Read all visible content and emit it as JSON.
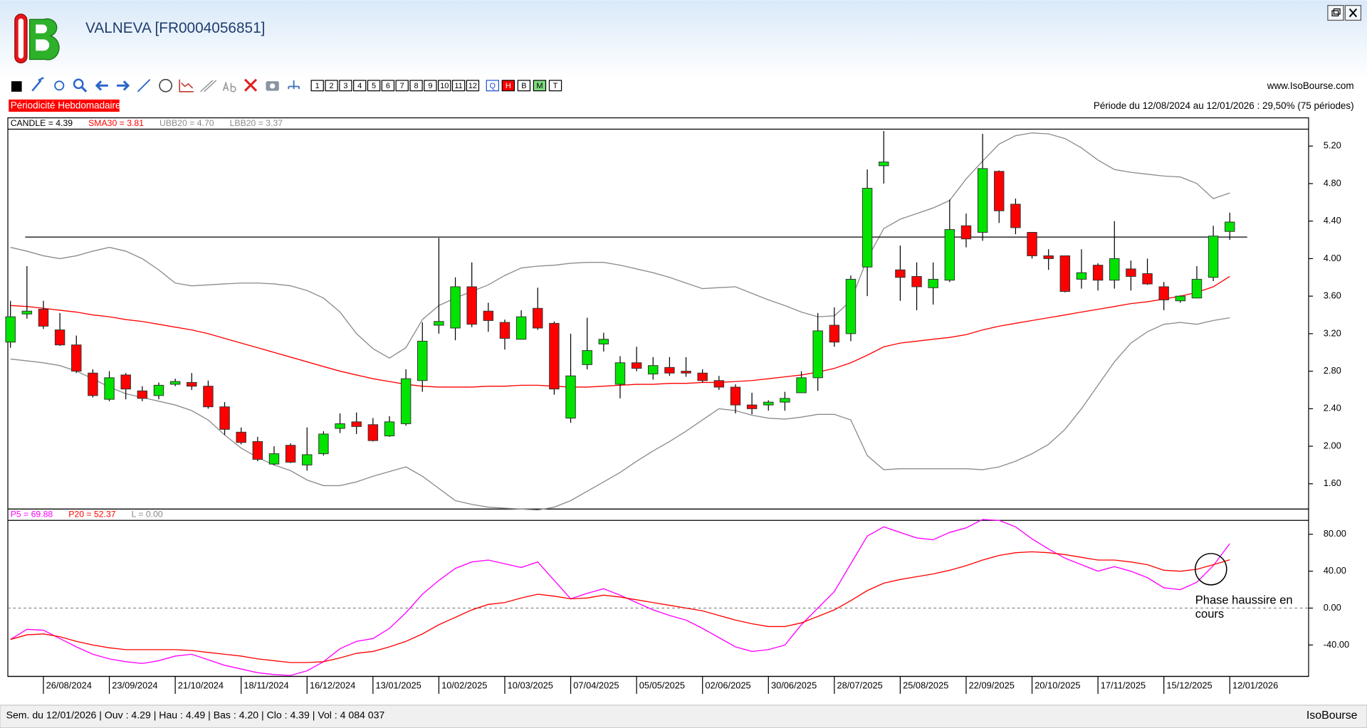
{
  "window": {
    "title": "VALNEVA [FR0004056851]",
    "site": "www.IsoBourse.com"
  },
  "toolbar": {
    "periods": [
      "1",
      "2",
      "3",
      "4",
      "5",
      "6",
      "7",
      "8",
      "9",
      "10",
      "11",
      "12"
    ],
    "modes": [
      "Q",
      "H",
      "B",
      "M",
      "T"
    ]
  },
  "periodicity": "Périodicité Hebdomadaire",
  "period_info": "Période du 12/08/2024 au 12/01/2026 : 29,50% (75 périodes)",
  "status_bar": {
    "text": "Sem. du 12/01/2026 | Ouv : 4.29 | Hau : 4.49 | Bas : 4.20 | Clo : 4.39 | Vol : 4 084 037",
    "brand": "IsoBourse"
  },
  "chart_data": [
    {
      "type": "candlestick",
      "candle_name": "CANDLE = 4.39",
      "categories": [
        null,
        null,
        "26/08/2024",
        null,
        null,
        null,
        "23/09/2024",
        null,
        null,
        null,
        "21/10/2024",
        null,
        null,
        null,
        "18/11/2024",
        null,
        null,
        null,
        "16/12/2024",
        null,
        null,
        null,
        "13/01/2025",
        null,
        null,
        null,
        "10/02/2025",
        null,
        null,
        null,
        "10/03/2025",
        null,
        null,
        null,
        "07/04/2025",
        null,
        null,
        null,
        "05/05/2025",
        null,
        null,
        null,
        "02/06/2025",
        null,
        null,
        null,
        "30/06/2025",
        null,
        null,
        null,
        "28/07/2025",
        null,
        null,
        null,
        "25/08/2025",
        null,
        null,
        null,
        "22/09/2025",
        null,
        null,
        null,
        "20/10/2025",
        null,
        null,
        null,
        "17/11/2025",
        null,
        null,
        null,
        "15/12/2025",
        null,
        null,
        null,
        "12/01/2026"
      ],
      "open": [
        3.11,
        3.41,
        3.46,
        3.24,
        3.08,
        2.78,
        2.5,
        2.76,
        2.59,
        2.54,
        2.66,
        2.68,
        2.64,
        2.42,
        2.15,
        2.05,
        1.81,
        2.01,
        1.8,
        1.92,
        2.19,
        2.26,
        2.23,
        2.11,
        2.24,
        2.7,
        3.29,
        3.26,
        3.7,
        3.44,
        3.32,
        3.14,
        3.47,
        3.31,
        2.3,
        2.87,
        3.09,
        2.66,
        2.89,
        2.77,
        2.84,
        2.8,
        2.78,
        2.7,
        2.63,
        2.44,
        2.44,
        2.47,
        2.57,
        2.73,
        3.29,
        3.2,
        3.91,
        4.99,
        3.88,
        3.81,
        3.69,
        3.77,
        4.35,
        4.28,
        4.93,
        4.58,
        4.28,
        4.03,
        4.03,
        3.78,
        3.93,
        3.77,
        3.89,
        3.84,
        3.7,
        3.55,
        3.58,
        3.8,
        4.29
      ],
      "high": [
        3.55,
        3.92,
        3.55,
        3.42,
        3.18,
        2.82,
        2.8,
        2.78,
        2.64,
        2.68,
        2.72,
        2.78,
        2.7,
        2.47,
        2.2,
        2.1,
        2.0,
        2.03,
        2.2,
        2.16,
        2.35,
        2.36,
        2.3,
        2.32,
        2.82,
        3.32,
        4.22,
        3.8,
        3.96,
        3.53,
        3.35,
        3.45,
        3.69,
        3.33,
        3.2,
        3.37,
        3.21,
        2.96,
        3.06,
        2.95,
        2.95,
        2.95,
        2.82,
        2.75,
        2.66,
        2.57,
        2.49,
        2.58,
        2.8,
        3.42,
        3.48,
        3.82,
        4.95,
        5.36,
        4.14,
        3.96,
        3.96,
        4.63,
        4.48,
        5.33,
        4.94,
        4.64,
        4.28,
        4.1,
        4.03,
        4.1,
        3.95,
        4.4,
        3.98,
        4.0,
        3.75,
        3.61,
        3.92,
        4.35,
        4.49
      ],
      "low": [
        3.05,
        3.36,
        3.25,
        3.07,
        2.78,
        2.52,
        2.48,
        2.5,
        2.48,
        2.5,
        2.64,
        2.6,
        2.4,
        2.12,
        2.02,
        1.84,
        1.8,
        1.82,
        1.74,
        1.9,
        2.14,
        2.13,
        2.05,
        2.1,
        2.22,
        2.58,
        3.2,
        3.13,
        3.27,
        3.22,
        3.03,
        3.14,
        3.24,
        2.55,
        2.25,
        2.82,
        3.01,
        2.51,
        2.8,
        2.71,
        2.75,
        2.74,
        2.68,
        2.6,
        2.35,
        2.34,
        2.38,
        2.38,
        2.57,
        2.59,
        3.06,
        3.12,
        3.6,
        4.8,
        3.55,
        3.45,
        3.51,
        3.75,
        4.12,
        4.19,
        4.38,
        4.26,
        4.0,
        3.88,
        3.64,
        3.68,
        3.66,
        3.68,
        3.66,
        3.72,
        3.45,
        3.53,
        3.58,
        3.76,
        4.2
      ],
      "close": [
        3.38,
        3.44,
        3.28,
        3.08,
        2.8,
        2.54,
        2.73,
        2.61,
        2.51,
        2.65,
        2.69,
        2.64,
        2.42,
        2.18,
        2.04,
        1.86,
        1.92,
        1.83,
        1.91,
        2.13,
        2.24,
        2.21,
        2.06,
        2.26,
        2.72,
        3.12,
        3.33,
        3.7,
        3.3,
        3.34,
        3.15,
        3.38,
        3.26,
        2.61,
        2.75,
        3.02,
        3.14,
        2.89,
        2.83,
        2.86,
        2.78,
        2.78,
        2.7,
        2.63,
        2.44,
        2.4,
        2.47,
        2.51,
        2.73,
        3.23,
        3.11,
        3.78,
        4.75,
        5.03,
        3.8,
        3.7,
        3.78,
        4.31,
        4.21,
        4.96,
        4.51,
        4.33,
        4.03,
        4.0,
        3.65,
        3.85,
        3.77,
        4.0,
        3.81,
        3.73,
        3.56,
        3.6,
        3.78,
        4.24,
        4.39
      ],
      "up_color": "#00e400",
      "down_color": "#ff0000",
      "series": [
        {
          "name": "SMA30 = 3.81",
          "color": "#ff0000",
          "values": [
            3.5,
            3.49,
            3.47,
            3.45,
            3.43,
            3.4,
            3.38,
            3.35,
            3.33,
            3.3,
            3.27,
            3.24,
            3.2,
            3.15,
            3.1,
            3.05,
            3.0,
            2.95,
            2.9,
            2.85,
            2.8,
            2.76,
            2.72,
            2.69,
            2.66,
            2.64,
            2.63,
            2.63,
            2.63,
            2.64,
            2.64,
            2.65,
            2.65,
            2.64,
            2.63,
            2.63,
            2.64,
            2.65,
            2.66,
            2.66,
            2.67,
            2.67,
            2.68,
            2.68,
            2.69,
            2.7,
            2.72,
            2.74,
            2.76,
            2.79,
            2.83,
            2.89,
            2.97,
            3.06,
            3.1,
            3.12,
            3.14,
            3.16,
            3.19,
            3.24,
            3.28,
            3.31,
            3.34,
            3.37,
            3.4,
            3.43,
            3.46,
            3.49,
            3.52,
            3.54,
            3.57,
            3.6,
            3.64,
            3.7,
            3.81
          ]
        },
        {
          "name": "UBB20 = 4.70",
          "color": "#8c8c8c",
          "values": [
            4.12,
            4.08,
            4.03,
            4.0,
            4.03,
            4.08,
            4.12,
            4.08,
            4.0,
            3.88,
            3.74,
            3.71,
            3.72,
            3.73,
            3.74,
            3.74,
            3.73,
            3.71,
            3.66,
            3.58,
            3.43,
            3.2,
            3.04,
            2.94,
            3.05,
            3.35,
            3.5,
            3.58,
            3.65,
            3.72,
            3.82,
            3.9,
            3.92,
            3.93,
            3.95,
            3.96,
            3.96,
            3.93,
            3.89,
            3.85,
            3.8,
            3.74,
            3.68,
            3.69,
            3.7,
            3.63,
            3.56,
            3.5,
            3.43,
            3.38,
            3.39,
            3.55,
            4.0,
            4.32,
            4.42,
            4.48,
            4.54,
            4.62,
            4.85,
            5.04,
            5.22,
            5.31,
            5.34,
            5.33,
            5.28,
            5.18,
            5.05,
            4.95,
            4.92,
            4.9,
            4.88,
            4.87,
            4.8,
            4.64,
            4.7
          ]
        },
        {
          "name": "LBB20 = 3.37",
          "color": "#8c8c8c",
          "values": [
            2.93,
            2.91,
            2.89,
            2.86,
            2.8,
            2.72,
            2.63,
            2.56,
            2.52,
            2.48,
            2.44,
            2.38,
            2.28,
            2.12,
            1.98,
            1.88,
            1.8,
            1.74,
            1.64,
            1.58,
            1.58,
            1.62,
            1.68,
            1.73,
            1.78,
            1.68,
            1.55,
            1.42,
            1.38,
            1.35,
            1.34,
            1.33,
            1.32,
            1.35,
            1.42,
            1.52,
            1.62,
            1.72,
            1.84,
            1.95,
            2.05,
            2.16,
            2.28,
            2.4,
            2.38,
            2.33,
            2.3,
            2.29,
            2.31,
            2.34,
            2.34,
            2.28,
            1.9,
            1.75,
            1.76,
            1.76,
            1.76,
            1.76,
            1.76,
            1.75,
            1.78,
            1.84,
            1.92,
            2.02,
            2.18,
            2.4,
            2.65,
            2.9,
            3.1,
            3.22,
            3.3,
            3.32,
            3.3,
            3.34,
            3.37
          ]
        }
      ],
      "hline": 4.23,
      "ylim": [
        1.33,
        5.38
      ],
      "yticks": [
        {
          "value": 1.6,
          "label": "1.60"
        },
        {
          "value": 2.0,
          "label": "2.00"
        },
        {
          "value": 2.4,
          "label": "2.40"
        },
        {
          "value": 2.8,
          "label": "2.80"
        },
        {
          "value": 3.2,
          "label": "3.20"
        },
        {
          "value": 3.6,
          "label": "3.60"
        },
        {
          "value": 4.0,
          "label": "4.00"
        },
        {
          "value": 4.4,
          "label": "4.40"
        },
        {
          "value": 4.8,
          "label": "4.80"
        },
        {
          "value": 5.2,
          "label": "5.20"
        }
      ]
    },
    {
      "type": "line",
      "series": [
        {
          "name": "P5 = 69.88",
          "color": "#ff00ff",
          "values": [
            -34,
            -23,
            -24,
            -33,
            -42,
            -50,
            -55,
            -58,
            -60,
            -57,
            -52,
            -50,
            -56,
            -62,
            -66,
            -70,
            -72,
            -73,
            -68,
            -58,
            -44,
            -36,
            -33,
            -22,
            -5,
            15,
            30,
            43,
            50,
            52,
            48,
            44,
            50,
            30,
            10,
            16,
            21,
            14,
            6,
            -2,
            -8,
            -13,
            -22,
            -32,
            -42,
            -47,
            -45,
            -40,
            -18,
            0,
            18,
            48,
            78,
            88,
            82,
            76,
            74,
            82,
            87,
            96,
            95,
            88,
            75,
            64,
            54,
            47,
            40,
            45,
            40,
            33,
            22,
            20,
            28,
            46,
            69.88
          ]
        },
        {
          "name": "P20 = 52.37",
          "color": "#ff0000",
          "values": [
            -34,
            -29,
            -28,
            -31,
            -36,
            -40,
            -43,
            -45,
            -45,
            -45,
            -45,
            -46,
            -48,
            -50,
            -52,
            -55,
            -57,
            -59,
            -59,
            -58,
            -54,
            -49,
            -47,
            -42,
            -36,
            -28,
            -18,
            -10,
            -2,
            4,
            6,
            11,
            15,
            13,
            10,
            11,
            14,
            12,
            9,
            6,
            3,
            0,
            -3,
            -8,
            -13,
            -17,
            -20,
            -20,
            -16,
            -9,
            -2,
            8,
            19,
            27,
            31,
            34,
            37,
            41,
            46,
            52,
            57,
            60,
            61,
            60,
            58,
            55,
            52,
            52,
            50,
            47,
            41,
            40,
            42,
            47,
            52.37
          ]
        }
      ],
      "zero_line": {
        "name": "L = 0.00",
        "value": 0
      },
      "annotation": [
        "Phase haussire en",
        "cours"
      ],
      "ylim": [
        -74,
        95
      ],
      "yticks": [
        {
          "value": -40,
          "label": "-40.00"
        },
        {
          "value": 0,
          "label": "0.00"
        },
        {
          "value": 40,
          "label": "40.00"
        },
        {
          "value": 80,
          "label": "80.00"
        }
      ]
    }
  ]
}
